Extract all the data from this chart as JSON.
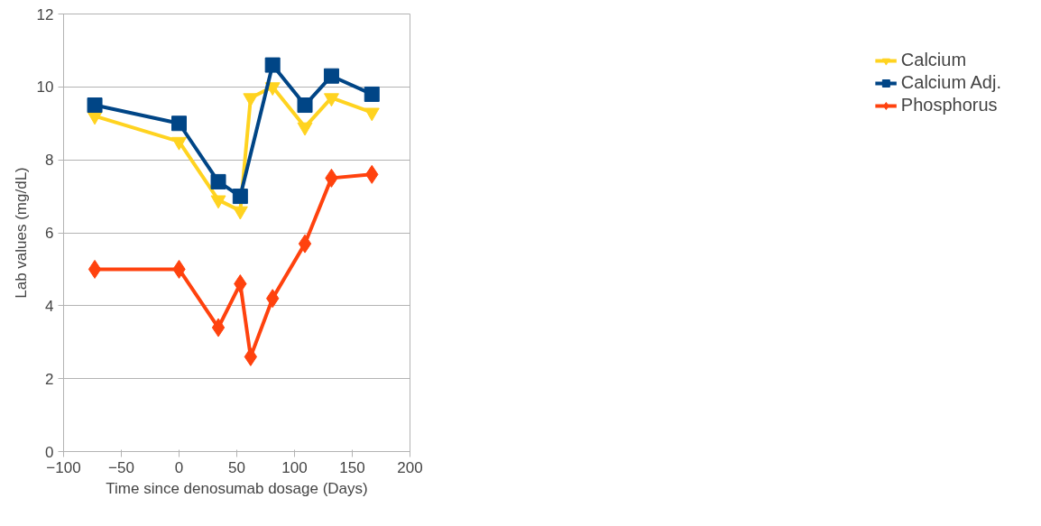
{
  "chart_data": {
    "type": "line",
    "xlabel": "Time since denosumab dosage (Days)",
    "ylabel": "Lab values (mg/dL)",
    "xlim": [
      -100,
      200
    ],
    "xticks": [
      -100,
      -50,
      0,
      50,
      100,
      150,
      200
    ],
    "ylim": [
      0,
      12
    ],
    "yticks": [
      0,
      2,
      4,
      6,
      8,
      10,
      12
    ],
    "grid": "y",
    "legend": "right",
    "series": [
      {
        "name": "Calcium",
        "color": "#ffd320",
        "marker": "triangle",
        "x": [
          -73,
          0,
          34,
          53,
          62,
          81,
          109,
          132,
          167
        ],
        "values": [
          9.2,
          8.5,
          6.9,
          6.6,
          9.7,
          10.0,
          8.9,
          9.7,
          9.3
        ]
      },
      {
        "name": "Calcium Adj.",
        "color": "#004586",
        "marker": "square",
        "x": [
          -73,
          0,
          34,
          53,
          81,
          109,
          132,
          167
        ],
        "values": [
          9.5,
          9.0,
          7.4,
          7.0,
          10.6,
          9.5,
          10.3,
          9.8
        ]
      },
      {
        "name": "Phosphorus",
        "color": "#ff420e",
        "marker": "diamond",
        "x": [
          -73,
          0,
          34,
          53,
          62,
          81,
          109,
          132,
          167
        ],
        "values": [
          5.0,
          5.0,
          3.4,
          4.6,
          2.6,
          4.2,
          5.7,
          7.5,
          7.6
        ]
      }
    ]
  }
}
